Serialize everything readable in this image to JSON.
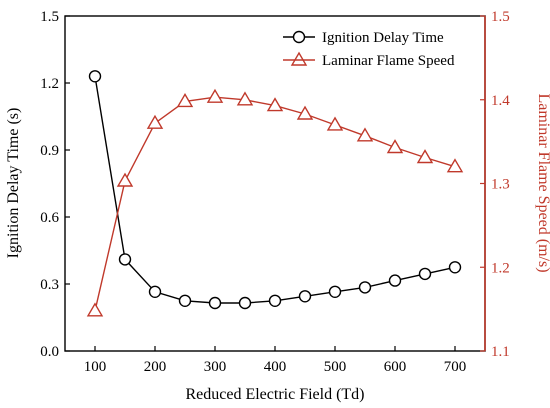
{
  "chart_data": {
    "type": "line",
    "x_axis": {
      "label": "Reduced Electric Field (Td)",
      "min": 50,
      "max": 750,
      "ticks": [
        100,
        200,
        300,
        400,
        500,
        600,
        700
      ]
    },
    "y_axis_left": {
      "label": "Ignition Delay Time (s)",
      "min": 0.0,
      "max": 1.5,
      "ticks": [
        "0.0",
        "0.3",
        "0.6",
        "0.9",
        "1.2",
        "1.5"
      ],
      "color": "#000000"
    },
    "y_axis_right": {
      "label": "Laminar Flame Speed (m/s)",
      "min": 1.1,
      "max": 1.5,
      "ticks": [
        "1.1",
        "1.2",
        "1.3",
        "1.4",
        "1.5"
      ],
      "color": "#c0392b"
    },
    "series": [
      {
        "name": "Ignition Delay Time",
        "axis": "left",
        "marker": "circle",
        "color": "#000000",
        "x": [
          100,
          150,
          200,
          250,
          300,
          350,
          400,
          450,
          500,
          550,
          600,
          650,
          700
        ],
        "y": [
          1.23,
          0.41,
          0.265,
          0.225,
          0.215,
          0.215,
          0.225,
          0.245,
          0.265,
          0.285,
          0.315,
          0.345,
          0.375
        ]
      },
      {
        "name": "Laminar Flame Speed",
        "axis": "right",
        "marker": "triangle",
        "color": "#c0392b",
        "x": [
          100,
          150,
          200,
          250,
          300,
          350,
          400,
          450,
          500,
          550,
          600,
          650,
          700
        ],
        "y": [
          1.148,
          1.303,
          1.372,
          1.398,
          1.403,
          1.4,
          1.393,
          1.383,
          1.37,
          1.357,
          1.343,
          1.331,
          1.32
        ]
      }
    ],
    "legend_position": "top-right",
    "grid": false
  }
}
